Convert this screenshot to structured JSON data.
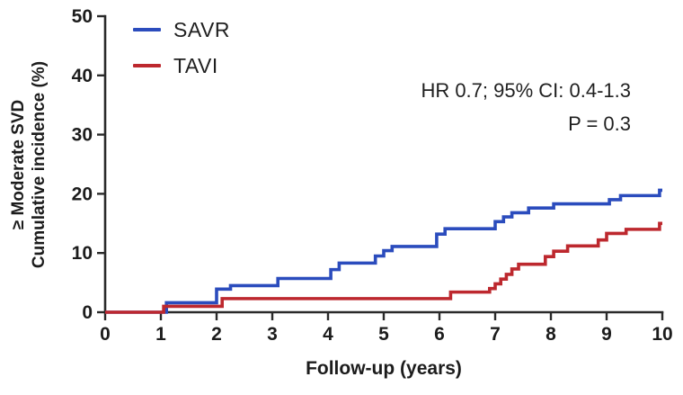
{
  "figure": {
    "background": "#ffffff",
    "text_color": "#1c1c1c",
    "axis_color": "#2a2a2a",
    "y_axis_label_line1": "≥ Moderate SVD",
    "y_axis_label_line2": "Cumulative incidence (%)",
    "x_axis_label": "Follow-up (years)",
    "annotation_line1": "HR 0.7; 95% CI: 0.4-1.3",
    "annotation_line2": "P = 0.3"
  },
  "legend": {
    "position": "top-left",
    "items": [
      {
        "label": "SAVR",
        "color": "#2b4cbd"
      },
      {
        "label": "TAVI",
        "color": "#bd282e"
      }
    ]
  },
  "chart_data": {
    "type": "line",
    "subtype": "step-function-cumulative-incidence",
    "title": "",
    "xlabel": "Follow-up (years)",
    "ylabel": "≥ Moderate SVD Cumulative incidence (%)",
    "xlim": [
      0,
      10
    ],
    "ylim": [
      0,
      50
    ],
    "x_ticks": [
      0,
      1,
      2,
      3,
      4,
      5,
      6,
      7,
      8,
      9,
      10
    ],
    "y_ticks": [
      0,
      10,
      20,
      30,
      40,
      50
    ],
    "grid": false,
    "legend_position": "top-left",
    "annotation": [
      "HR 0.7; 95% CI: 0.4-1.3",
      "P = 0.3"
    ],
    "series": [
      {
        "name": "SAVR",
        "color": "#2b4cbd",
        "start": [
          0,
          0
        ],
        "steps": [
          [
            1.1,
            1.6
          ],
          [
            2.0,
            3.9
          ],
          [
            2.25,
            4.5
          ],
          [
            3.1,
            5.7
          ],
          [
            4.05,
            7.2
          ],
          [
            4.2,
            8.3
          ],
          [
            4.85,
            9.5
          ],
          [
            5.0,
            10.4
          ],
          [
            5.15,
            11.1
          ],
          [
            5.95,
            13.2
          ],
          [
            6.1,
            14.1
          ],
          [
            7.0,
            15.3
          ],
          [
            7.15,
            16.1
          ],
          [
            7.3,
            16.8
          ],
          [
            7.6,
            17.6
          ],
          [
            8.05,
            18.3
          ],
          [
            9.05,
            19.0
          ],
          [
            9.25,
            19.7
          ],
          [
            9.95,
            20.6
          ]
        ],
        "end_x": 10,
        "final_value_pct": 20.6
      },
      {
        "name": "TAVI",
        "color": "#bd282e",
        "start": [
          0,
          0
        ],
        "steps": [
          [
            1.05,
            1.0
          ],
          [
            2.1,
            2.3
          ],
          [
            6.2,
            3.4
          ],
          [
            6.9,
            4.0
          ],
          [
            7.0,
            4.8
          ],
          [
            7.1,
            5.6
          ],
          [
            7.2,
            6.4
          ],
          [
            7.3,
            7.3
          ],
          [
            7.42,
            8.1
          ],
          [
            7.9,
            9.4
          ],
          [
            8.05,
            10.3
          ],
          [
            8.3,
            11.2
          ],
          [
            8.85,
            12.2
          ],
          [
            9.0,
            13.3
          ],
          [
            9.35,
            14.0
          ],
          [
            9.95,
            15.0
          ]
        ],
        "end_x": 10,
        "final_value_pct": 15.0
      }
    ]
  }
}
